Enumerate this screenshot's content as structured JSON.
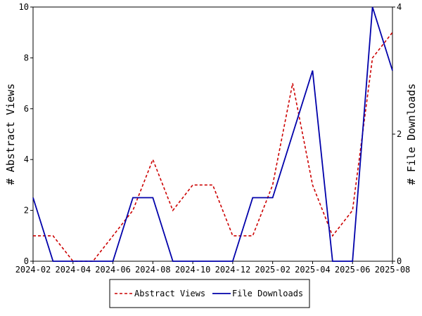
{
  "chart_data": {
    "type": "line",
    "x": [
      "2024-02",
      "2024-03",
      "2024-04",
      "2024-05",
      "2024-06",
      "2024-07",
      "2024-08",
      "2024-09",
      "2024-10",
      "2024-11",
      "2024-12",
      "2025-01",
      "2025-02",
      "2025-03",
      "2025-04",
      "2025-05",
      "2025-06",
      "2025-07",
      "2025-08"
    ],
    "x_tick_labels": [
      "2024-02",
      "2024-04",
      "2024-06",
      "2024-08",
      "2024-10",
      "2024-12",
      "2025-02",
      "2025-04",
      "2025-06",
      "2025-08"
    ],
    "series": [
      {
        "name": "Abstract Views",
        "axis": "left",
        "color": "#cc0000",
        "style": "dashed",
        "values": [
          1,
          1,
          0,
          0,
          1,
          2,
          4,
          2,
          3,
          3,
          1,
          1,
          3,
          7,
          3,
          1,
          2,
          8,
          9
        ]
      },
      {
        "name": "File Downloads",
        "axis": "right",
        "color": "#0000aa",
        "style": "solid",
        "values": [
          1,
          0,
          0,
          0,
          0,
          1,
          1,
          0,
          0,
          0,
          0,
          1,
          1,
          2,
          3,
          0,
          0,
          4,
          3
        ]
      }
    ],
    "ylabel_left": "# Abstract Views",
    "ylabel_right": "# File Downloads",
    "ylim_left": [
      0,
      10
    ],
    "ylim_right": [
      0,
      4
    ],
    "yticks_left": [
      "0",
      "2",
      "4",
      "6",
      "8",
      "10"
    ],
    "yticks_right": [
      "0",
      "2",
      "4"
    ],
    "grid": false,
    "legend_position": "bottom-center"
  }
}
